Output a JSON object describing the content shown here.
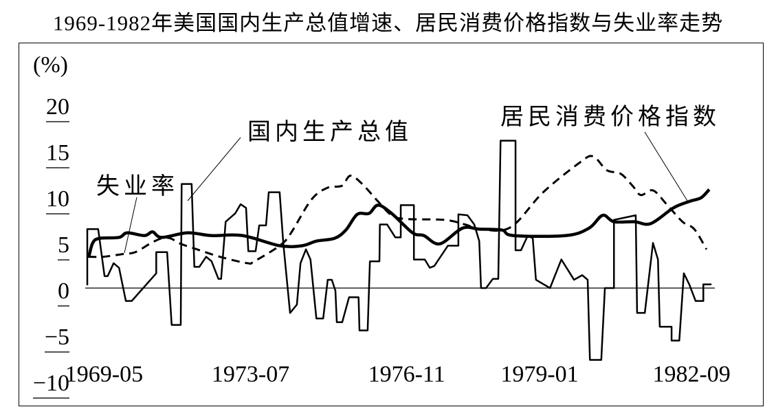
{
  "chart_data": {
    "type": "line",
    "title": "1969-1982年美国国内生产总值增速、居民消费价格指数与失业率走势",
    "ylabel": "(%)",
    "xlabel": "",
    "ylim": [
      -10,
      20
    ],
    "xlim": [
      1969.0,
      1982.76
    ],
    "yticks": [
      "20",
      "15",
      "10",
      "5",
      "0",
      "−5",
      "−10"
    ],
    "ytick_values": [
      20,
      15,
      10,
      5,
      0,
      -5,
      -10
    ],
    "xticks": [
      "1969-05",
      "1973-07",
      "1976-11",
      "1979-01",
      "1982-09"
    ],
    "xtick_values": [
      1969.37,
      1972.6,
      1976.04,
      1978.97,
      1982.32
    ],
    "grid": false,
    "legend": "inline annotations",
    "series": [
      {
        "name": "国内生产总值",
        "style": "thin-solid",
        "color": "#000000",
        "points": [
          [
            1969.0,
            0.3
          ],
          [
            1969.0,
            6.4
          ],
          [
            1969.24,
            6.4
          ],
          [
            1969.38,
            1.3
          ],
          [
            1969.45,
            1.3
          ],
          [
            1969.58,
            2.7
          ],
          [
            1969.7,
            2.2
          ],
          [
            1969.85,
            -1.4
          ],
          [
            1969.98,
            -1.4
          ],
          [
            1970.52,
            1.6
          ],
          [
            1970.52,
            3.9
          ],
          [
            1970.76,
            3.9
          ],
          [
            1970.86,
            -4.0
          ],
          [
            1971.06,
            -4.0
          ],
          [
            1971.08,
            11.3
          ],
          [
            1971.3,
            11.3
          ],
          [
            1971.36,
            2.3
          ],
          [
            1971.47,
            2.3
          ],
          [
            1971.62,
            3.4
          ],
          [
            1971.74,
            2.9
          ],
          [
            1971.89,
            1.0
          ],
          [
            1971.95,
            1.0
          ],
          [
            1972.05,
            7.2
          ],
          [
            1972.26,
            8.1
          ],
          [
            1972.38,
            9.1
          ],
          [
            1972.5,
            8.7
          ],
          [
            1972.55,
            4.0
          ],
          [
            1972.71,
            4.0
          ],
          [
            1972.79,
            6.8
          ],
          [
            1972.94,
            6.8
          ],
          [
            1973.0,
            10.4
          ],
          [
            1973.24,
            10.4
          ],
          [
            1973.32,
            4.9
          ],
          [
            1973.47,
            -2.7
          ],
          [
            1973.62,
            -1.8
          ],
          [
            1973.7,
            2.7
          ],
          [
            1973.82,
            4.2
          ],
          [
            1973.92,
            3.1
          ],
          [
            1974.05,
            -3.3
          ],
          [
            1974.2,
            -3.3
          ],
          [
            1974.3,
            0.9
          ],
          [
            1974.39,
            0.9
          ],
          [
            1974.47,
            -0.3
          ],
          [
            1974.5,
            -3.7
          ],
          [
            1974.62,
            -3.7
          ],
          [
            1974.77,
            -1.0
          ],
          [
            1974.98,
            -1.0
          ],
          [
            1975.0,
            -4.6
          ],
          [
            1975.18,
            -4.6
          ],
          [
            1975.23,
            2.9
          ],
          [
            1975.44,
            2.9
          ],
          [
            1975.45,
            6.9
          ],
          [
            1975.61,
            6.9
          ],
          [
            1975.79,
            5.5
          ],
          [
            1975.91,
            5.5
          ],
          [
            1975.91,
            9.0
          ],
          [
            1976.2,
            9.0
          ],
          [
            1976.2,
            3.1
          ],
          [
            1976.44,
            3.1
          ],
          [
            1976.55,
            2.2
          ],
          [
            1976.65,
            2.4
          ],
          [
            1976.95,
            4.6
          ],
          [
            1977.18,
            4.6
          ],
          [
            1977.18,
            8.0
          ],
          [
            1977.38,
            7.9
          ],
          [
            1977.53,
            6.9
          ],
          [
            1977.64,
            5.1
          ],
          [
            1977.68,
            0.0
          ],
          [
            1977.79,
            0.0
          ],
          [
            1977.94,
            1.0
          ],
          [
            1978.06,
            1.0
          ],
          [
            1978.11,
            16.0
          ],
          [
            1978.44,
            16.0
          ],
          [
            1978.44,
            4.1
          ],
          [
            1978.56,
            4.1
          ],
          [
            1978.71,
            5.7
          ],
          [
            1978.82,
            5.4
          ],
          [
            1978.89,
            0.9
          ],
          [
            1979.2,
            0.0
          ],
          [
            1979.45,
            3.1
          ],
          [
            1979.73,
            0.9
          ],
          [
            1979.91,
            1.4
          ],
          [
            1980.03,
            0.9
          ],
          [
            1980.08,
            -7.8
          ],
          [
            1980.33,
            -7.8
          ],
          [
            1980.41,
            0.0
          ],
          [
            1980.61,
            0.0
          ],
          [
            1980.61,
            7.4
          ],
          [
            1981.09,
            7.9
          ],
          [
            1981.12,
            -2.7
          ],
          [
            1981.29,
            -2.7
          ],
          [
            1981.47,
            4.9
          ],
          [
            1981.58,
            3.1
          ],
          [
            1981.62,
            -4.2
          ],
          [
            1981.88,
            -4.2
          ],
          [
            1981.88,
            -5.7
          ],
          [
            1982.05,
            -5.7
          ],
          [
            1982.15,
            1.6
          ],
          [
            1982.27,
            0.4
          ],
          [
            1982.41,
            -1.4
          ],
          [
            1982.58,
            -1.4
          ],
          [
            1982.58,
            0.4
          ],
          [
            1982.76,
            0.4
          ]
        ]
      },
      {
        "name": "失业率",
        "style": "dashed",
        "color": "#000000",
        "points": [
          [
            1969.02,
            3.4
          ],
          [
            1969.35,
            3.4
          ],
          [
            1969.8,
            3.7
          ],
          [
            1970.06,
            3.9
          ],
          [
            1970.41,
            4.9
          ],
          [
            1970.64,
            5.4
          ],
          [
            1970.83,
            5.4
          ],
          [
            1971.06,
            4.8
          ],
          [
            1971.36,
            4.3
          ],
          [
            1971.92,
            3.4
          ],
          [
            1972.53,
            2.7
          ],
          [
            1972.68,
            2.9
          ],
          [
            1973.24,
            4.6
          ],
          [
            1973.48,
            5.9
          ],
          [
            1973.94,
            9.6
          ],
          [
            1974.3,
            10.9
          ],
          [
            1974.61,
            11.1
          ],
          [
            1974.8,
            12.2
          ],
          [
            1975.06,
            11.3
          ],
          [
            1975.41,
            9.4
          ],
          [
            1975.71,
            7.9
          ],
          [
            1976.02,
            7.5
          ],
          [
            1976.88,
            7.4
          ],
          [
            1977.33,
            6.9
          ],
          [
            1977.68,
            6.4
          ],
          [
            1978.33,
            6.6
          ],
          [
            1979.05,
            10.4
          ],
          [
            1979.85,
            13.6
          ],
          [
            1980.15,
            14.3
          ],
          [
            1980.45,
            12.8
          ],
          [
            1980.76,
            12.4
          ],
          [
            1981.02,
            11.1
          ],
          [
            1981.2,
            10.1
          ],
          [
            1981.47,
            10.6
          ],
          [
            1981.77,
            9.1
          ],
          [
            1982.12,
            7.2
          ],
          [
            1982.38,
            6.4
          ],
          [
            1982.65,
            4.2
          ]
        ]
      },
      {
        "name": "居民消费价格指数",
        "style": "thick-solid",
        "color": "#000000",
        "points": [
          [
            1969.03,
            3.3
          ],
          [
            1969.12,
            4.9
          ],
          [
            1969.27,
            5.4
          ],
          [
            1969.7,
            5.5
          ],
          [
            1969.88,
            6.0
          ],
          [
            1970.26,
            5.7
          ],
          [
            1970.44,
            6.1
          ],
          [
            1970.64,
            5.5
          ],
          [
            1971.21,
            6.0
          ],
          [
            1971.73,
            5.7
          ],
          [
            1972.42,
            5.7
          ],
          [
            1973.24,
            4.6
          ],
          [
            1973.74,
            4.6
          ],
          [
            1974.05,
            5.1
          ],
          [
            1974.45,
            5.4
          ],
          [
            1974.7,
            6.3
          ],
          [
            1974.95,
            8.0
          ],
          [
            1975.21,
            8.1
          ],
          [
            1975.41,
            9.0
          ],
          [
            1975.71,
            8.1
          ],
          [
            1976.17,
            6.0
          ],
          [
            1976.42,
            5.7
          ],
          [
            1976.77,
            4.8
          ],
          [
            1977.27,
            6.5
          ],
          [
            1977.64,
            6.4
          ],
          [
            1978.14,
            6.3
          ],
          [
            1978.39,
            5.7
          ],
          [
            1979.55,
            5.7
          ],
          [
            1980.06,
            6.5
          ],
          [
            1980.36,
            7.9
          ],
          [
            1980.61,
            7.2
          ],
          [
            1981.06,
            7.2
          ],
          [
            1981.42,
            7.0
          ],
          [
            1981.92,
            8.7
          ],
          [
            1982.27,
            9.4
          ],
          [
            1982.53,
            9.8
          ],
          [
            1982.71,
            10.7
          ]
        ]
      }
    ]
  }
}
